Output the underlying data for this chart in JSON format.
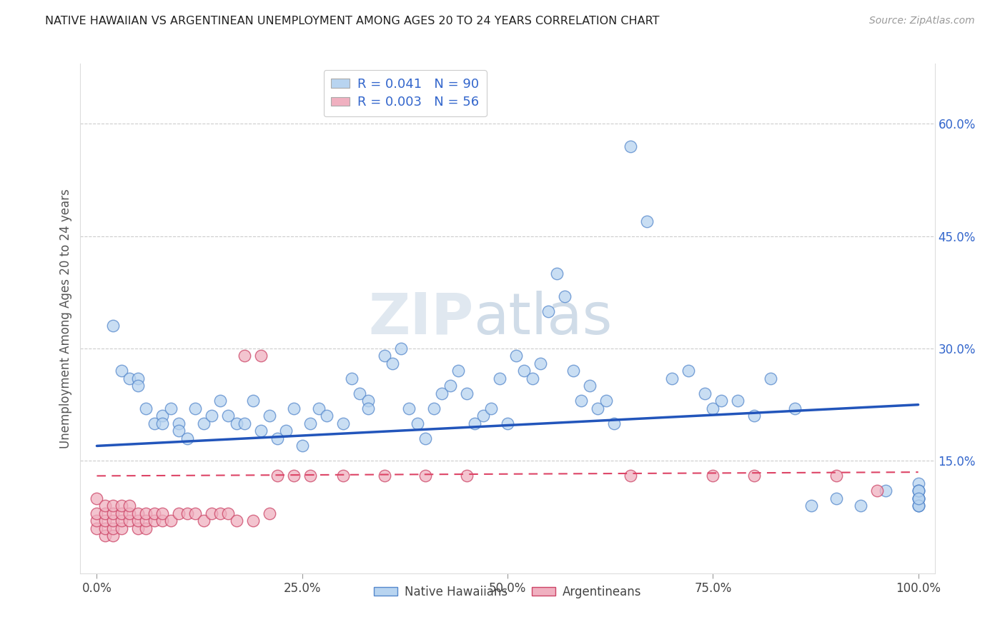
{
  "title": "NATIVE HAWAIIAN VS ARGENTINEAN UNEMPLOYMENT AMONG AGES 20 TO 24 YEARS CORRELATION CHART",
  "source": "Source: ZipAtlas.com",
  "ylabel": "Unemployment Among Ages 20 to 24 years",
  "xlim": [
    -2,
    102
  ],
  "ylim": [
    0,
    68
  ],
  "xticks": [
    0,
    25,
    50,
    75,
    100
  ],
  "xticklabels": [
    "0.0%",
    "25.0%",
    "50.0%",
    "75.0%",
    "100.0%"
  ],
  "yticks_right": [
    15.0,
    30.0,
    45.0,
    60.0
  ],
  "ytick_labels_right": [
    "15.0%",
    "30.0%",
    "45.0%",
    "60.0%"
  ],
  "r_hawaiian": 0.041,
  "n_hawaiian": 90,
  "r_argentinean": 0.003,
  "n_argentinean": 56,
  "hawaiian_fill": "#b8d4f0",
  "hawaiian_edge": "#5588cc",
  "argentinean_fill": "#f0b0c0",
  "argentinean_edge": "#cc4466",
  "hawaiian_line_color": "#2255bb",
  "argentinean_line_color": "#dd4466",
  "background_color": "#ffffff",
  "grid_color": "#cccccc",
  "watermark_color": "#e0e8f0",
  "haw_line_y0": 17.0,
  "haw_line_y1": 22.5,
  "arg_line_y0": 13.0,
  "arg_line_y1": 13.5,
  "hawaiian_x": [
    2,
    3,
    4,
    5,
    5,
    6,
    7,
    8,
    8,
    9,
    10,
    10,
    11,
    12,
    13,
    14,
    15,
    16,
    17,
    18,
    19,
    20,
    21,
    22,
    23,
    24,
    25,
    26,
    27,
    28,
    30,
    31,
    32,
    33,
    33,
    35,
    36,
    37,
    38,
    39,
    40,
    41,
    42,
    43,
    44,
    45,
    46,
    47,
    48,
    49,
    50,
    51,
    52,
    53,
    54,
    55,
    56,
    57,
    58,
    59,
    60,
    61,
    62,
    63,
    65,
    67,
    70,
    72,
    74,
    75,
    76,
    78,
    80,
    82,
    85,
    87,
    90,
    93,
    96,
    100,
    100,
    100,
    100,
    100,
    100,
    100,
    100,
    100,
    100,
    100
  ],
  "hawaiian_y": [
    33,
    27,
    26,
    26,
    25,
    22,
    20,
    21,
    20,
    22,
    20,
    19,
    18,
    22,
    20,
    21,
    23,
    21,
    20,
    20,
    23,
    19,
    21,
    18,
    19,
    22,
    17,
    20,
    22,
    21,
    20,
    26,
    24,
    23,
    22,
    29,
    28,
    30,
    22,
    20,
    18,
    22,
    24,
    25,
    27,
    24,
    20,
    21,
    22,
    26,
    20,
    29,
    27,
    26,
    28,
    35,
    40,
    37,
    27,
    23,
    25,
    22,
    23,
    20,
    57,
    47,
    26,
    27,
    24,
    22,
    23,
    23,
    21,
    26,
    22,
    9,
    10,
    9,
    11,
    10,
    9,
    10,
    12,
    10,
    9,
    11,
    11,
    9,
    11,
    10
  ],
  "argentinean_x": [
    0,
    0,
    0,
    0,
    1,
    1,
    1,
    1,
    1,
    2,
    2,
    2,
    2,
    2,
    3,
    3,
    3,
    3,
    4,
    4,
    4,
    5,
    5,
    5,
    6,
    6,
    6,
    7,
    7,
    8,
    8,
    9,
    10,
    11,
    12,
    13,
    14,
    15,
    16,
    17,
    18,
    19,
    20,
    21,
    22,
    24,
    26,
    30,
    35,
    40,
    45,
    65,
    75,
    80,
    90,
    95
  ],
  "argentinean_y": [
    6,
    7,
    8,
    10,
    5,
    6,
    7,
    8,
    9,
    5,
    6,
    7,
    8,
    9,
    6,
    7,
    8,
    9,
    7,
    8,
    9,
    6,
    7,
    8,
    6,
    7,
    8,
    7,
    8,
    7,
    8,
    7,
    8,
    8,
    8,
    7,
    8,
    8,
    8,
    7,
    29,
    7,
    29,
    8,
    13,
    13,
    13,
    13,
    13,
    13,
    13,
    13,
    13,
    13,
    13,
    11
  ]
}
